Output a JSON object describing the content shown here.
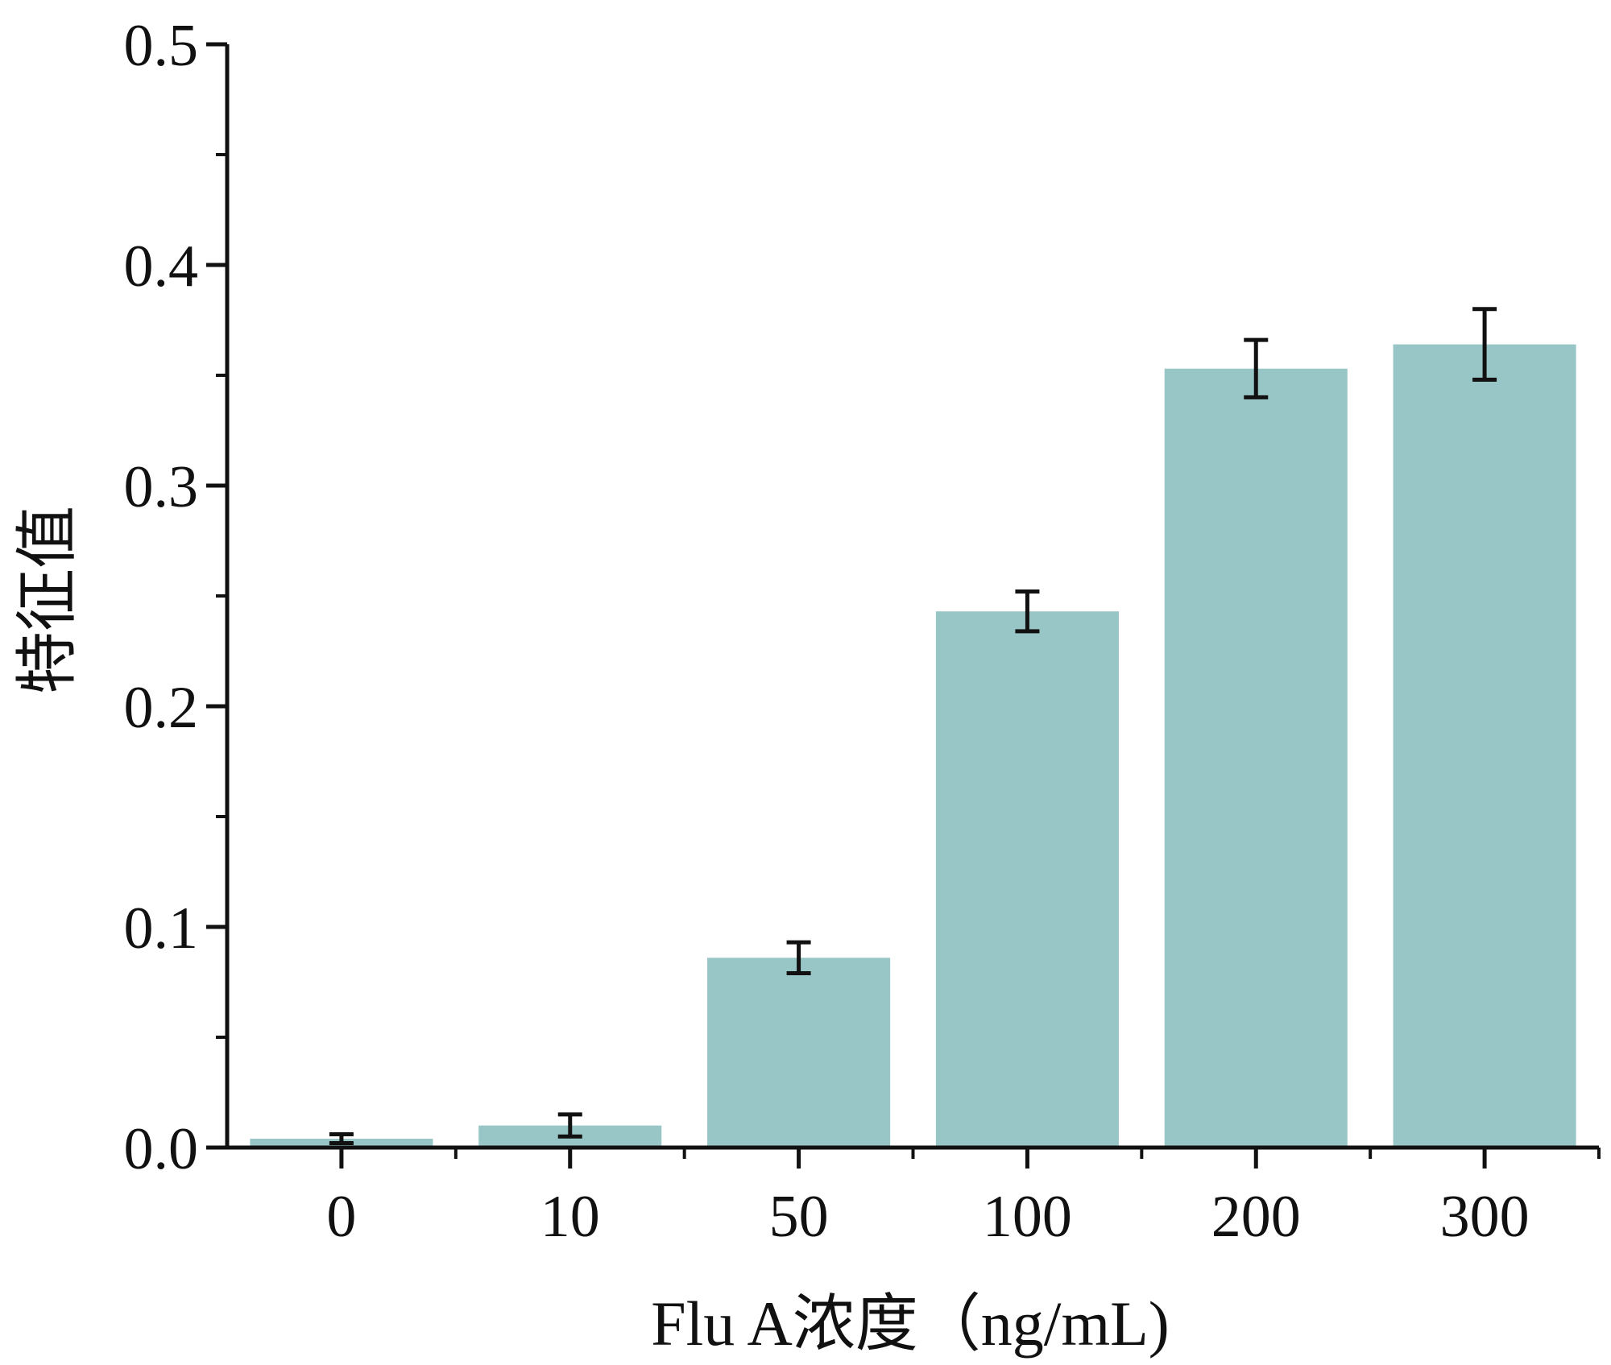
{
  "chart_data": {
    "type": "bar",
    "title": "",
    "xlabel": "Flu A浓度（ng/mL)",
    "ylabel": "特征值",
    "categories": [
      "0",
      "10",
      "50",
      "100",
      "200",
      "300"
    ],
    "values": [
      0.004,
      0.01,
      0.086,
      0.243,
      0.353,
      0.364
    ],
    "errors": [
      0.002,
      0.005,
      0.007,
      0.009,
      0.013,
      0.016
    ],
    "ylim": [
      0,
      0.5
    ],
    "yticks": [
      "0.0",
      "0.1",
      "0.2",
      "0.3",
      "0.4",
      "0.5"
    ],
    "grid": false,
    "legend": "none",
    "bar_color": "#98c6c7",
    "error_bar_color": "#111111",
    "axis_color": "#111111"
  }
}
